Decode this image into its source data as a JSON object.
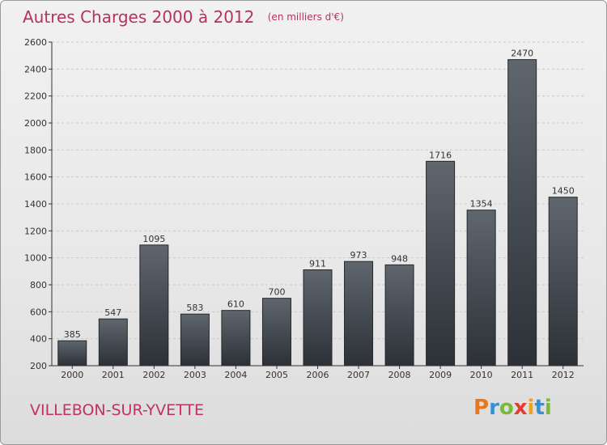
{
  "header": {
    "title": "Autres Charges 2000 à 2012",
    "subtitle": "(en milliers d'€)"
  },
  "footer": {
    "city": "VILLEBON-SUR-YVETTE",
    "logo_letters": [
      "P",
      "r",
      "o",
      "x",
      "i",
      "t",
      "i"
    ],
    "logo_colors": [
      "#e8781e",
      "#3a8fd1",
      "#7ab83a",
      "#e23c2e",
      "#f0a21e",
      "#3a8fd1",
      "#7ab83a"
    ]
  },
  "chart_data": {
    "type": "bar",
    "categories": [
      "2000",
      "2001",
      "2002",
      "2003",
      "2004",
      "2005",
      "2006",
      "2007",
      "2008",
      "2009",
      "2010",
      "2011",
      "2012"
    ],
    "values": [
      385,
      547,
      1095,
      583,
      610,
      700,
      911,
      973,
      948,
      1716,
      1354,
      2470,
      1450
    ],
    "ylim": [
      200,
      2600
    ],
    "yticks": [
      200,
      400,
      600,
      800,
      1000,
      1200,
      1400,
      1600,
      1800,
      2000,
      2200,
      2400,
      2600
    ],
    "grid": true,
    "bar_color": "#4a5058"
  }
}
